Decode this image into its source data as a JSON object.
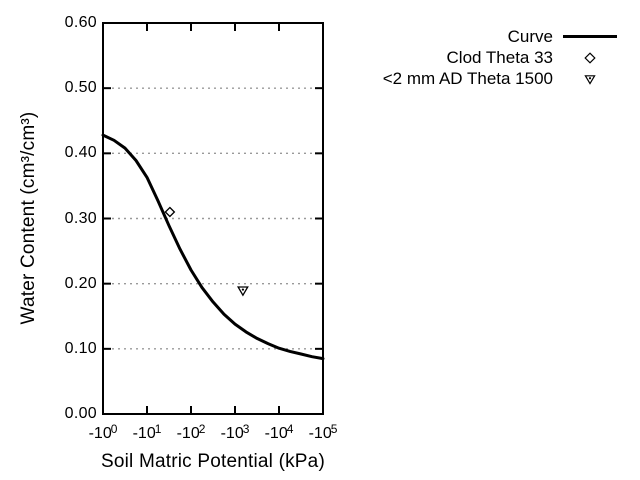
{
  "colors": {
    "foreground": "#000000",
    "grid": "#999999",
    "background": "#ffffff"
  },
  "chart_data": {
    "type": "line",
    "title": "",
    "xlabel": "Soil Matric Potential (kPa)",
    "ylabel": "Water Content (cm³/cm³)",
    "x_scale": "negative-log10",
    "x_tick_base": "-10",
    "x_tick_exponents": [
      "0",
      "1",
      "2",
      "3",
      "4",
      "5"
    ],
    "xlim_log": [
      0,
      5
    ],
    "y_ticks": [
      "0.00",
      "0.10",
      "0.20",
      "0.30",
      "0.40",
      "0.50",
      "0.60"
    ],
    "ylim": [
      0,
      0.6
    ],
    "grid": "horizontal-dashed",
    "legend_position": "outside-top-right",
    "series": [
      {
        "name": "Curve",
        "type": "line",
        "marker": "line",
        "x_log10": [
          0,
          0.25,
          0.5,
          0.75,
          1,
          1.25,
          1.5,
          1.75,
          2,
          2.25,
          2.5,
          2.75,
          3,
          3.25,
          3.5,
          3.75,
          4,
          4.25,
          4.5,
          4.75,
          5
        ],
        "y": [
          0.428,
          0.42,
          0.408,
          0.389,
          0.363,
          0.327,
          0.289,
          0.253,
          0.221,
          0.194,
          0.172,
          0.153,
          0.138,
          0.126,
          0.116,
          0.108,
          0.101,
          0.096,
          0.092,
          0.088,
          0.085
        ]
      },
      {
        "name": "Clod Theta 33",
        "type": "point",
        "marker": "diamond-open",
        "x_kpa": -33,
        "x_log10": 1.52,
        "y": 0.31
      },
      {
        "name": "<2 mm AD Theta 1500",
        "type": "point",
        "marker": "triangle-down-open",
        "x_kpa": -1500,
        "x_log10": 3.18,
        "y": 0.19
      }
    ]
  },
  "legend": {
    "items": [
      {
        "label": "Curve",
        "marker": "line"
      },
      {
        "label": "Clod Theta 33",
        "marker": "diamond-open"
      },
      {
        "label": "<2 mm AD Theta 1500",
        "marker": "triangle-down-open"
      }
    ]
  }
}
